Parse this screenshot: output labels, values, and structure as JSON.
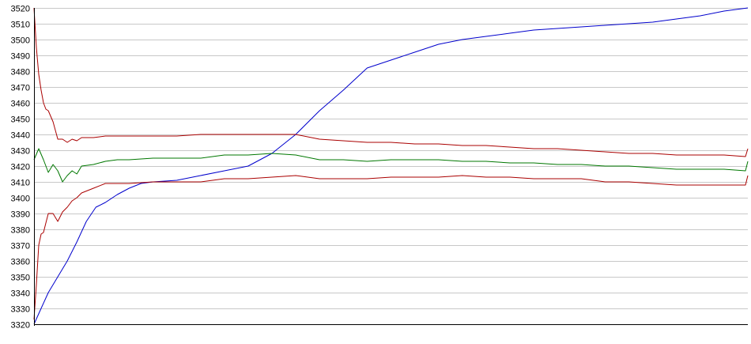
{
  "chart_data": {
    "type": "line",
    "title": "",
    "xlabel": "",
    "ylabel": "",
    "ylim": [
      3320,
      3520
    ],
    "xlim": [
      0,
      300
    ],
    "grid": true,
    "legend": "none",
    "yticks": [
      3320,
      3330,
      3340,
      3350,
      3360,
      3370,
      3380,
      3390,
      3400,
      3410,
      3420,
      3430,
      3440,
      3450,
      3460,
      3470,
      3480,
      3490,
      3500,
      3510,
      3520
    ],
    "series": [
      {
        "color": "#0000cc",
        "x": [
          0,
          3,
          6,
          10,
          14,
          18,
          22,
          26,
          30,
          35,
          40,
          45,
          50,
          60,
          70,
          80,
          90,
          100,
          110,
          120,
          130,
          140,
          150,
          160,
          170,
          180,
          190,
          200,
          210,
          220,
          230,
          240,
          250,
          260,
          270,
          280,
          290,
          300
        ],
        "y": [
          3320,
          3330,
          3340,
          3350,
          3360,
          3372,
          3385,
          3394,
          3397,
          3402,
          3406,
          3409,
          3410,
          3411,
          3414,
          3417,
          3420,
          3428,
          3440,
          3455,
          3468,
          3482,
          3487,
          3492,
          3497,
          3500,
          3502,
          3504,
          3506,
          3507,
          3508,
          3509,
          3510,
          3511,
          3513,
          3515,
          3518,
          3520
        ]
      },
      {
        "color": "#aa0000",
        "x": [
          0,
          1,
          2,
          3,
          4,
          5,
          6,
          8,
          10,
          12,
          14,
          16,
          18,
          20,
          25,
          30,
          35,
          40,
          50,
          60,
          70,
          80,
          90,
          100,
          110,
          120,
          130,
          140,
          150,
          160,
          170,
          180,
          190,
          200,
          210,
          220,
          230,
          240,
          250,
          260,
          270,
          280,
          290,
          299,
          300
        ],
        "y": [
          3520,
          3495,
          3478,
          3468,
          3460,
          3456,
          3455,
          3448,
          3437,
          3437,
          3435,
          3437,
          3436,
          3438,
          3438,
          3439,
          3439,
          3439,
          3439,
          3439,
          3440,
          3440,
          3440,
          3440,
          3440,
          3437,
          3436,
          3435,
          3435,
          3434,
          3434,
          3433,
          3433,
          3432,
          3431,
          3431,
          3430,
          3429,
          3428,
          3428,
          3427,
          3427,
          3427,
          3426,
          3431
        ]
      },
      {
        "color": "#007700",
        "x": [
          0,
          2,
          4,
          6,
          8,
          10,
          12,
          14,
          16,
          18,
          20,
          25,
          30,
          35,
          40,
          50,
          60,
          70,
          80,
          90,
          100,
          110,
          120,
          130,
          140,
          150,
          160,
          170,
          180,
          190,
          200,
          210,
          220,
          230,
          240,
          250,
          260,
          270,
          280,
          290,
          299,
          300
        ],
        "y": [
          3424,
          3431,
          3424,
          3416,
          3421,
          3417,
          3410,
          3414,
          3417,
          3415,
          3420,
          3421,
          3423,
          3424,
          3424,
          3425,
          3425,
          3425,
          3427,
          3427,
          3428,
          3427,
          3424,
          3424,
          3423,
          3424,
          3424,
          3424,
          3423,
          3423,
          3422,
          3422,
          3421,
          3421,
          3420,
          3420,
          3419,
          3418,
          3418,
          3418,
          3417,
          3423
        ]
      },
      {
        "color": "#aa0000",
        "x": [
          0,
          1,
          2,
          3,
          4,
          5,
          6,
          8,
          10,
          12,
          14,
          16,
          18,
          20,
          25,
          30,
          35,
          40,
          50,
          60,
          70,
          80,
          90,
          100,
          110,
          120,
          130,
          140,
          150,
          160,
          170,
          180,
          190,
          200,
          210,
          220,
          230,
          240,
          250,
          260,
          270,
          280,
          290,
          299,
          300
        ],
        "y": [
          3323,
          3345,
          3370,
          3377,
          3378,
          3384,
          3390,
          3390,
          3385,
          3391,
          3394,
          3398,
          3400,
          3403,
          3406,
          3409,
          3409,
          3409,
          3410,
          3410,
          3410,
          3412,
          3412,
          3413,
          3414,
          3412,
          3412,
          3412,
          3413,
          3413,
          3413,
          3414,
          3413,
          3413,
          3412,
          3412,
          3412,
          3410,
          3410,
          3409,
          3408,
          3408,
          3408,
          3408,
          3414
        ]
      }
    ]
  }
}
